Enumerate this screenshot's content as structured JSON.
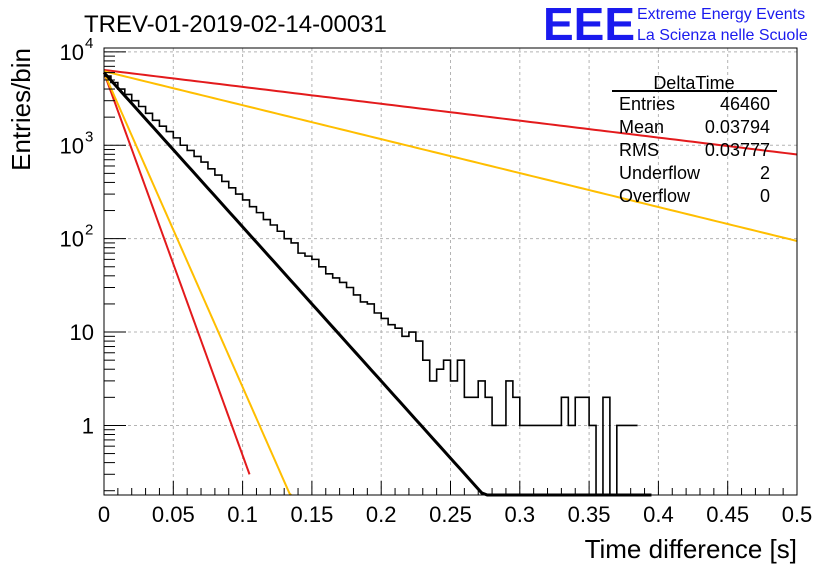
{
  "header": {
    "title": "TREV-01-2019-02-14-00031",
    "logo": {
      "mark": "EEE",
      "line1": "Extreme Energy Events",
      "line2": "La Scienza nelle Scuole",
      "color": "#1a1aee"
    }
  },
  "stats_box": {
    "name": "DeltaTime",
    "rows": [
      {
        "label": "Entries",
        "value": "46460"
      },
      {
        "label": "Mean",
        "value": "0.03794"
      },
      {
        "label": "RMS",
        "value": "0.03777"
      },
      {
        "label": "Underflow",
        "value": "2"
      },
      {
        "label": "Overflow",
        "value": "0"
      }
    ]
  },
  "chart_data": {
    "type": "line",
    "title": "TREV-01-2019-02-14-00031",
    "xlabel": "Time difference [s]",
    "ylabel": "Entries/bin",
    "xlim": [
      0,
      0.5
    ],
    "ylim": [
      0.18,
      11000
    ],
    "yscale": "log",
    "grid": true,
    "x_ticks": [
      "0",
      "0.05",
      "0.1",
      "0.15",
      "0.2",
      "0.25",
      "0.3",
      "0.35",
      "0.4",
      "0.45",
      "0.5"
    ],
    "y_ticks": [
      {
        "value": 1,
        "label": "1",
        "exp": ""
      },
      {
        "value": 10,
        "label": "10",
        "exp": ""
      },
      {
        "value": 100,
        "label": "10",
        "exp": "2"
      },
      {
        "value": 1000,
        "label": "10",
        "exp": "3"
      },
      {
        "value": 10000,
        "label": "10",
        "exp": "4"
      }
    ],
    "histogram": {
      "name": "DeltaTime",
      "color": "#000000",
      "bin_width": 0.005,
      "counts": [
        5500,
        4700,
        4000,
        3500,
        3000,
        2600,
        2200,
        1850,
        1600,
        1400,
        1200,
        1000,
        880,
        760,
        660,
        560,
        480,
        410,
        350,
        300,
        260,
        220,
        190,
        160,
        140,
        120,
        100,
        90,
        70,
        65,
        60,
        50,
        42,
        38,
        34,
        30,
        25,
        21,
        20,
        16,
        14,
        12,
        11,
        9,
        10,
        8,
        5,
        3,
        4,
        5,
        3,
        5,
        2,
        2,
        3,
        2,
        1,
        1,
        3,
        2,
        1,
        1,
        1,
        1,
        1,
        1,
        2,
        1,
        2,
        2,
        1,
        0.1,
        2,
        0,
        1,
        1,
        1
      ]
    },
    "fit": {
      "name": "fit",
      "color": "#000000",
      "A": 6000,
      "tau": 0.0263,
      "x_end": 0.395
    },
    "curves": [
      {
        "name": "red-slow",
        "color": "#e31a1c",
        "A": 6400,
        "tau": 0.24,
        "x_end": 0.5
      },
      {
        "name": "yellow-slow",
        "color": "#ffbe00",
        "A": 6200,
        "tau": 0.1195,
        "x_end": 0.5
      },
      {
        "name": "red-fast",
        "color": "#e31a1c",
        "A": 6000,
        "tau": 0.0106,
        "x_end": 0.105
      },
      {
        "name": "yellow-fast",
        "color": "#ffbe00",
        "A": 6000,
        "tau": 0.0129,
        "x_end": 0.135
      }
    ]
  }
}
